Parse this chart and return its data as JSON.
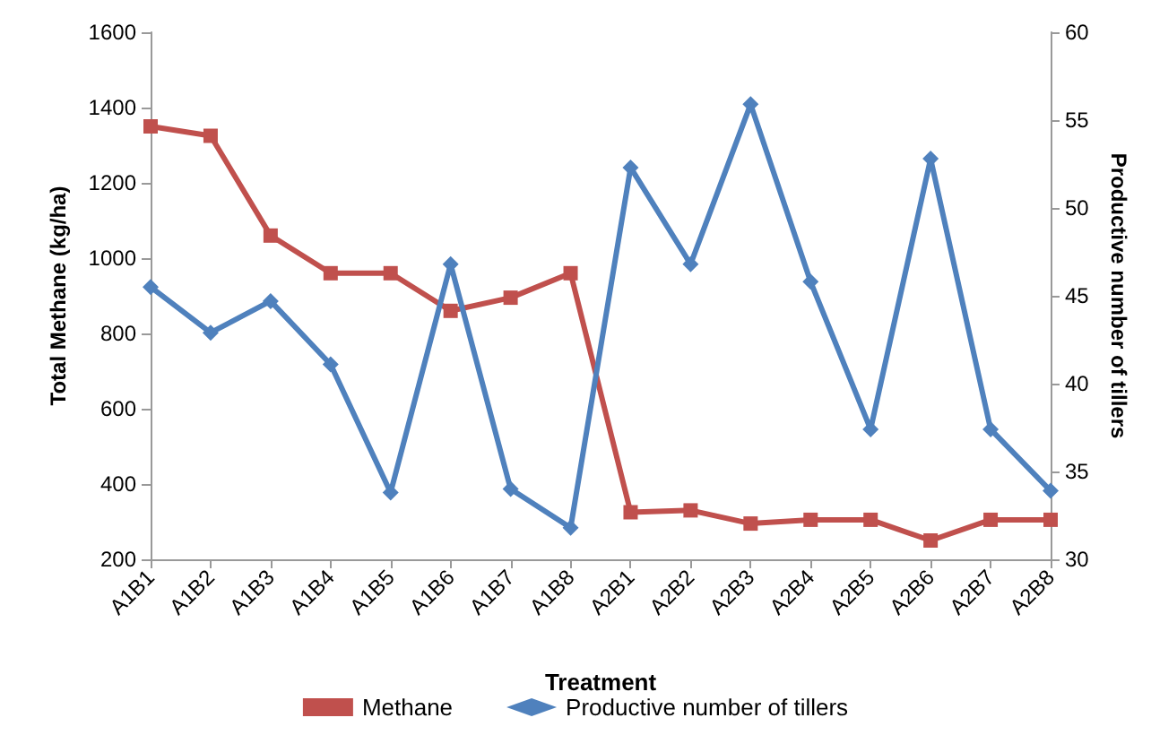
{
  "chart_data": {
    "type": "line",
    "xlabel": "Treatment",
    "ylabel": "Total Methane (kg/ha)",
    "y2label": "Productive number of tillers",
    "categories": [
      "A1B1",
      "A1B2",
      "A1B3",
      "A1B4",
      "A1B5",
      "A1B6",
      "A1B7",
      "A1B8",
      "A2B1",
      "A2B2",
      "A2B3",
      "A2B4",
      "A2B5",
      "A2B6",
      "A2B7",
      "A2B8"
    ],
    "series": [
      {
        "name": "Methane",
        "color": "#c0504d",
        "marker": "square",
        "values": [
          1350,
          1325,
          1060,
          960,
          960,
          860,
          895,
          960,
          325,
          330,
          295,
          305,
          305,
          250,
          305,
          305
        ]
      },
      {
        "name": "Productive number of tillers",
        "color": "#4f81bd",
        "marker": "diamond",
        "axis": "y2",
        "values": [
          45.5,
          42.9,
          44.7,
          41.1,
          33.8,
          46.8,
          34.0,
          31.8,
          52.3,
          46.8,
          55.9,
          45.8,
          37.4,
          52.8,
          37.4,
          33.9
        ]
      }
    ],
    "ylim": [
      200,
      1600
    ],
    "yticks": [
      200,
      400,
      600,
      800,
      1000,
      1200,
      1400,
      1600
    ],
    "y2lim": [
      30,
      60
    ],
    "y2ticks": [
      30,
      35,
      40,
      45,
      50,
      55,
      60
    ],
    "grid": false,
    "legend": "bottom"
  }
}
